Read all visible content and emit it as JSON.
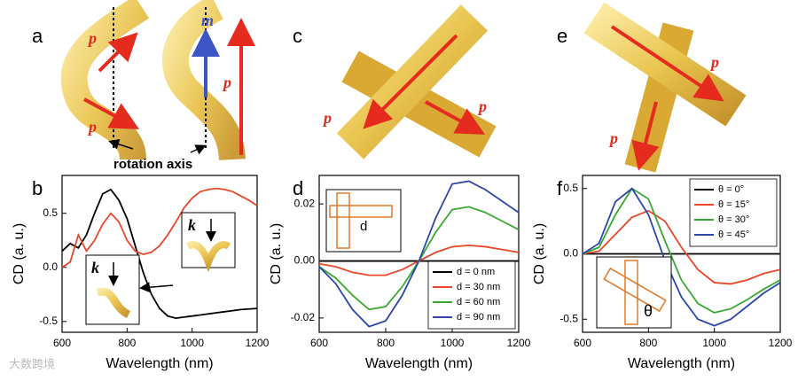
{
  "panel_labels": [
    "a",
    "b",
    "c",
    "d",
    "e",
    "f"
  ],
  "illustrations": {
    "a": [
      "p",
      "p",
      "m",
      "p",
      "rotation axis"
    ],
    "c": [
      "p",
      "p"
    ],
    "e": [
      "p",
      "p"
    ]
  },
  "insets": {
    "b": [
      "k",
      "k"
    ],
    "d": [
      "d"
    ],
    "f": [
      "θ"
    ]
  },
  "watermark": "大数跨境",
  "chart_data": [
    {
      "type": "line",
      "xlabel": "Wavelength (nm)",
      "ylabel": "CD (a. u.)",
      "x": [
        600,
        625,
        650,
        675,
        700,
        725,
        750,
        775,
        800,
        825,
        850,
        875,
        900,
        925,
        950,
        975,
        1000,
        1025,
        1050,
        1075,
        1100,
        1125,
        1150,
        1175,
        1200
      ],
      "xlim": [
        600,
        1200
      ],
      "xticks": [
        600,
        800,
        1000,
        1200
      ],
      "ylim": [
        -0.6,
        0.85
      ],
      "yticks": [
        -0.5,
        {
          "value": 0,
          "label": "0.0"
        },
        0.5
      ],
      "series": [
        {
          "color": "#000000",
          "values": [
            0.15,
            0.22,
            0.18,
            0.3,
            0.5,
            0.68,
            0.72,
            0.62,
            0.45,
            0.2,
            -0.05,
            -0.25,
            -0.38,
            -0.45,
            -0.47,
            -0.46,
            -0.45,
            -0.44,
            -0.43,
            -0.42,
            -0.41,
            -0.4,
            -0.39,
            -0.385,
            -0.38
          ]
        },
        {
          "color": "#e8472a",
          "values": [
            0.0,
            0.05,
            0.3,
            0.15,
            0.25,
            0.4,
            0.5,
            0.42,
            0.25,
            0.15,
            0.12,
            0.14,
            0.2,
            0.3,
            0.42,
            0.55,
            0.64,
            0.7,
            0.72,
            0.73,
            0.72,
            0.7,
            0.66,
            0.62,
            0.57
          ]
        }
      ]
    },
    {
      "type": "line",
      "xlabel": "Wavelength (nm)",
      "ylabel": "CD (a. u.)",
      "x": [
        600,
        650,
        700,
        750,
        800,
        850,
        900,
        950,
        1000,
        1050,
        1100,
        1150,
        1200
      ],
      "xlim": [
        600,
        1200
      ],
      "xticks": [
        600,
        800,
        1000,
        1200
      ],
      "ylim": [
        -0.025,
        0.03
      ],
      "yticks": [
        -0.02,
        {
          "value": 0,
          "label": "0.00"
        },
        0.02
      ],
      "legend": "lower right",
      "series": [
        {
          "name": "d = 0 nm",
          "color": "#000000",
          "values": [
            0,
            0,
            0,
            0,
            0,
            0,
            0,
            0,
            0,
            0,
            0,
            0,
            0
          ]
        },
        {
          "name": "d = 30 nm",
          "color": "#e8472a",
          "values": [
            -0.001,
            -0.002,
            -0.004,
            -0.005,
            -0.005,
            -0.003,
            0,
            0.003,
            0.005,
            0.0055,
            0.005,
            0.004,
            0.003
          ]
        },
        {
          "name": "d = 60 nm",
          "color": "#3aa832",
          "values": [
            -0.002,
            -0.006,
            -0.012,
            -0.017,
            -0.016,
            -0.009,
            0,
            0.01,
            0.018,
            0.019,
            0.017,
            0.014,
            0.011
          ]
        },
        {
          "name": "d = 90 nm",
          "color": "#2b47a8",
          "values": [
            -0.002,
            -0.008,
            -0.017,
            -0.023,
            -0.021,
            -0.012,
            0,
            0.015,
            0.027,
            0.028,
            0.025,
            0.021,
            0.017
          ]
        }
      ]
    },
    {
      "type": "line",
      "xlabel": "Wavelength (nm)",
      "ylabel": "CD (a. u.)",
      "x": [
        600,
        650,
        700,
        750,
        800,
        850,
        900,
        950,
        1000,
        1050,
        1100,
        1150,
        1200
      ],
      "xlim": [
        600,
        1200
      ],
      "xticks": [
        600,
        800,
        1000,
        1200
      ],
      "ylim": [
        -0.6,
        0.6
      ],
      "yticks": [
        -0.5,
        {
          "value": 0,
          "label": "0.0"
        },
        0.5
      ],
      "legend": "upper right",
      "series": [
        {
          "name": "θ = 0°",
          "color": "#000000",
          "values": [
            0,
            0,
            0,
            0,
            0,
            0,
            0,
            0,
            0,
            0,
            0,
            0,
            0
          ]
        },
        {
          "name": "θ = 15°",
          "color": "#e8472a",
          "values": [
            0,
            0.02,
            0.15,
            0.28,
            0.33,
            0.25,
            0.05,
            -0.12,
            -0.22,
            -0.23,
            -0.2,
            -0.15,
            -0.12
          ]
        },
        {
          "name": "θ = 30°",
          "color": "#3aa832",
          "values": [
            0,
            0.05,
            0.3,
            0.5,
            0.42,
            0.1,
            -0.2,
            -0.38,
            -0.45,
            -0.42,
            -0.35,
            -0.27,
            -0.2
          ]
        },
        {
          "name": "θ = 45°",
          "color": "#2b47a8",
          "values": [
            0,
            0.08,
            0.4,
            0.5,
            0.3,
            -0.05,
            -0.33,
            -0.5,
            -0.55,
            -0.5,
            -0.4,
            -0.3,
            -0.22
          ]
        }
      ]
    }
  ]
}
